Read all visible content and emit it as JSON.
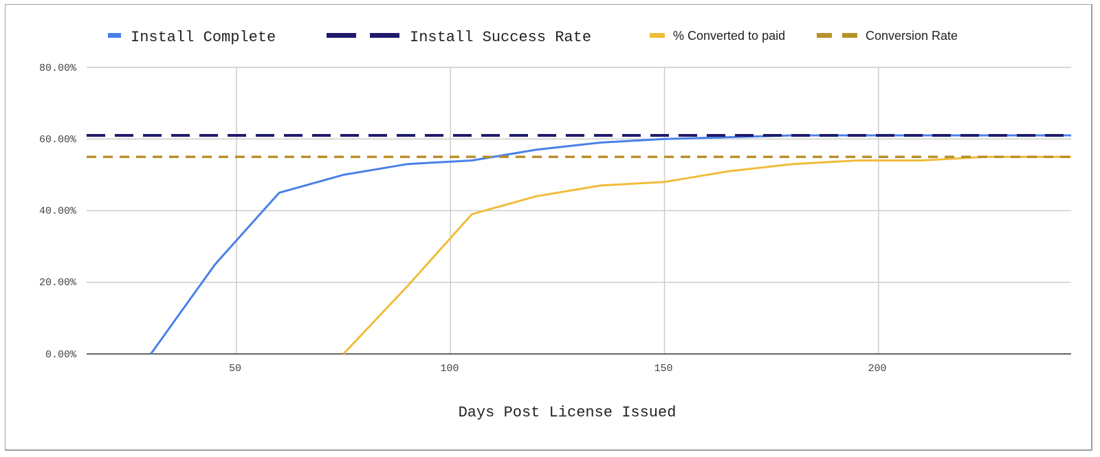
{
  "chart_data": {
    "type": "line",
    "title": "",
    "xlabel": "Days Post License Issued",
    "ylabel": "",
    "xlim": [
      15,
      245
    ],
    "ylim": [
      0,
      0.8
    ],
    "x_ticks": [
      50,
      100,
      150,
      200
    ],
    "x_tick_labels": [
      "50",
      "100",
      "150",
      "200"
    ],
    "y_ticks": [
      0,
      0.2,
      0.4,
      0.6,
      0.8
    ],
    "y_tick_labels": [
      "0.00%",
      "20.00%",
      "40.00%",
      "60.00%",
      "80.00%"
    ],
    "grid": true,
    "legend_position": "top",
    "series": [
      {
        "name": "Install Complete",
        "color": "#4a80e8",
        "style": "solid",
        "x": [
          30,
          45,
          60,
          75,
          90,
          105,
          120,
          135,
          150,
          165,
          180,
          195,
          210,
          225,
          240,
          245
        ],
        "values": [
          0.0,
          0.25,
          0.45,
          0.5,
          0.53,
          0.54,
          0.57,
          0.59,
          0.6,
          0.605,
          0.61,
          0.61,
          0.61,
          0.61,
          0.61,
          0.61
        ]
      },
      {
        "name": "Install Success Rate",
        "color": "#1f1a6b",
        "style": "dashed",
        "x": [
          15,
          245
        ],
        "values": [
          0.61,
          0.61
        ]
      },
      {
        "name": "% Converted to paid",
        "color": "#f0bc3a",
        "style": "solid",
        "x": [
          75,
          90,
          105,
          120,
          135,
          150,
          165,
          180,
          195,
          210,
          225,
          240,
          245
        ],
        "values": [
          0.0,
          0.19,
          0.39,
          0.44,
          0.47,
          0.48,
          0.51,
          0.53,
          0.54,
          0.54,
          0.55,
          0.55,
          0.55
        ]
      },
      {
        "name": "Conversion Rate",
        "color": "#b8912a",
        "style": "dashed",
        "x": [
          15,
          245
        ],
        "values": [
          0.55,
          0.55
        ]
      }
    ]
  },
  "legend": [
    {
      "label": "Install Complete",
      "color": "#4a80e8",
      "style": "solid",
      "font": "mono"
    },
    {
      "label": "Install Success Rate",
      "color": "#1f1a6b",
      "style": "dashed",
      "font": "mono"
    },
    {
      "label": "% Converted to paid",
      "color": "#f0bc3a",
      "style": "solid",
      "font": "sans"
    },
    {
      "label": "Conversion Rate",
      "color": "#b8912a",
      "style": "dashed",
      "font": "sans"
    }
  ],
  "axes": {
    "x_title": "Days Post License Issued",
    "y_labels": [
      "80.00%",
      "60.00%",
      "40.00%",
      "20.00%",
      "0.00%"
    ],
    "x_labels": [
      "50",
      "100",
      "150",
      "200"
    ]
  }
}
